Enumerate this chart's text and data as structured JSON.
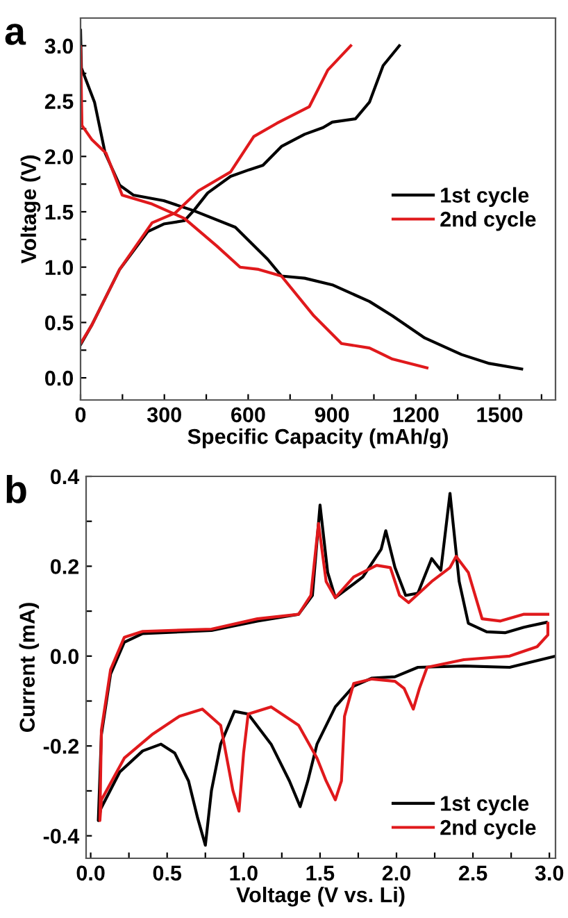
{
  "chart_data": [
    {
      "type": "line",
      "xlabel": "Specific Capacity (mAh/g)",
      "ylabel": "Voltage (V)",
      "annotations": [
        "a"
      ],
      "legend": "right",
      "grid": false,
      "line_style": "solid",
      "xlim": [
        0,
        1700
      ],
      "ylim": [
        -0.2,
        3.25
      ],
      "xticks": [
        0,
        {
          "value": 150,
          "label": null
        },
        300,
        {
          "value": 450,
          "label": null
        },
        600,
        {
          "value": 750,
          "label": null
        },
        900,
        {
          "value": 1050,
          "label": null
        },
        1200,
        {
          "value": 1350,
          "label": null
        },
        1500,
        {
          "value": 1650,
          "label": null
        }
      ],
      "yticks": [
        {
          "value": 0,
          "label": "0.0"
        },
        {
          "value": 0.25,
          "label": null
        },
        0.5,
        {
          "value": 0.75,
          "label": null
        },
        {
          "value": 1,
          "label": "1.0"
        },
        {
          "value": 1.25,
          "label": null
        },
        1.5,
        {
          "value": 1.75,
          "label": null
        },
        {
          "value": 2,
          "label": "2.0"
        },
        {
          "value": 2.25,
          "label": null
        },
        2.5,
        {
          "value": 2.75,
          "label": null
        },
        {
          "value": 3,
          "label": "3.0"
        }
      ],
      "series": [
        {
          "name": "1st cycle",
          "color": "#000000",
          "x": [
            0,
            3,
            50,
            88,
            140,
            190,
            298,
            405,
            554,
            670,
            719,
            802,
            901,
            1034,
            1116,
            1232,
            1364,
            1463,
            1579
          ],
          "values": [
            3.14,
            2.8,
            2.49,
            2.03,
            1.74,
            1.65,
            1.6,
            1.51,
            1.36,
            1.07,
            0.92,
            0.9,
            0.84,
            0.69,
            0.56,
            0.36,
            0.21,
            0.13,
            0.08
          ]
        },
        {
          "color": "#000000",
          "x": [
            0,
            41,
            140,
            240,
            298,
            372,
            405,
            455,
            537,
            604,
            653,
            719,
            802,
            868,
            901,
            984,
            1034,
            1083,
            1141
          ],
          "values": [
            0.3,
            0.48,
            0.98,
            1.32,
            1.39,
            1.42,
            1.51,
            1.67,
            1.82,
            1.88,
            1.92,
            2.09,
            2.2,
            2.26,
            2.31,
            2.34,
            2.49,
            2.82,
            3.0
          ]
        },
        {
          "name": "2nd cycle",
          "color": "#e0191c",
          "x": [
            0,
            5,
            41,
            91,
            149,
            256,
            372,
            488,
            571,
            637,
            719,
            835,
            934,
            1034,
            1116,
            1240
          ],
          "values": [
            2.99,
            2.28,
            2.15,
            2.03,
            1.65,
            1.57,
            1.44,
            1.19,
            1.0,
            0.98,
            0.92,
            0.56,
            0.31,
            0.27,
            0.17,
            0.09
          ]
        },
        {
          "color": "#e0191c",
          "x": [
            0,
            41,
            140,
            256,
            339,
            422,
            537,
            620,
            703,
            819,
            885,
            967
          ],
          "values": [
            0.31,
            0.48,
            0.98,
            1.4,
            1.49,
            1.69,
            1.86,
            2.18,
            2.3,
            2.45,
            2.78,
            3.0
          ]
        }
      ]
    },
    {
      "type": "line",
      "xlabel": "Voltage (V vs. Li)",
      "ylabel": "Current (mA)",
      "annotations": [
        "b"
      ],
      "legend": "bottom right",
      "grid": false,
      "line_style": "solid",
      "xlim": [
        -0.03,
        3.04
      ],
      "ylim": [
        -0.45,
        0.4
      ],
      "xticks": [
        {
          "value": 0,
          "label": "0.0"
        },
        {
          "value": 0.25,
          "label": null
        },
        0.5,
        {
          "value": 0.75,
          "label": null
        },
        {
          "value": 1,
          "label": "1.0"
        },
        {
          "value": 1.25,
          "label": null
        },
        1.5,
        {
          "value": 1.75,
          "label": null
        },
        {
          "value": 2,
          "label": "2.0"
        },
        {
          "value": 2.25,
          "label": null
        },
        2.5,
        {
          "value": 2.75,
          "label": null
        },
        {
          "value": 3,
          "label": "3.0"
        }
      ],
      "yticks": [
        {
          "value": -0.4,
          "label": "-0.4"
        },
        {
          "value": -0.3,
          "label": null
        },
        {
          "value": -0.2,
          "label": "-0.2"
        },
        {
          "value": -0.1,
          "label": null
        },
        {
          "value": 0,
          "label": "0.0"
        },
        {
          "value": 0.1,
          "label": null
        },
        0.2,
        {
          "value": 0.3,
          "label": null
        },
        0.4
      ],
      "series": [
        {
          "name": "1st cycle",
          "color": "#000000",
          "x": [
            3.04,
            2.74,
            2.44,
            2.14,
            1.99,
            1.84,
            1.72,
            1.6,
            1.48,
            1.42,
            1.37,
            1.3,
            1.18,
            1.03,
            0.94,
            0.85,
            0.79,
            0.75,
            0.7,
            0.64,
            0.55,
            0.46,
            0.34,
            0.19,
            0.066,
            0.05,
            0.07,
            0.13,
            0.22,
            0.34,
            0.79,
            1.09,
            1.36,
            1.45,
            1.5,
            1.55,
            1.6,
            1.78,
            1.9,
            1.93,
            1.99,
            2.06,
            2.14,
            2.23,
            2.29,
            2.35,
            2.41,
            2.47,
            2.59,
            2.71,
            2.83,
            2.98
          ],
          "values": [
            0.0,
            -0.025,
            -0.022,
            -0.025,
            -0.046,
            -0.049,
            -0.067,
            -0.113,
            -0.196,
            -0.278,
            -0.335,
            -0.278,
            -0.196,
            -0.129,
            -0.123,
            -0.196,
            -0.299,
            -0.421,
            -0.361,
            -0.278,
            -0.216,
            -0.196,
            -0.211,
            -0.258,
            -0.34,
            -0.366,
            -0.175,
            -0.04,
            0.031,
            0.05,
            0.057,
            0.078,
            0.093,
            0.135,
            0.336,
            0.186,
            0.13,
            0.176,
            0.238,
            0.279,
            0.197,
            0.135,
            0.14,
            0.217,
            0.191,
            0.362,
            0.166,
            0.073,
            0.054,
            0.052,
            0.064,
            0.075
          ]
        },
        {
          "name": "2nd cycle",
          "color": "#e0191c",
          "x": [
            2.99,
            2.99,
            2.92,
            2.74,
            2.44,
            2.2,
            2.15,
            2.11,
            2.05,
            1.99,
            1.84,
            1.72,
            1.66,
            1.64,
            1.6,
            1.54,
            1.48,
            1.36,
            1.18,
            1.03,
            1.0,
            0.97,
            0.93,
            0.85,
            0.73,
            0.58,
            0.4,
            0.22,
            0.07,
            0.06,
            0.07,
            0.13,
            0.22,
            0.34,
            0.79,
            1.09,
            1.36,
            1.44,
            1.49,
            1.54,
            1.6,
            1.72,
            1.87,
            1.96,
            2.02,
            2.08,
            2.23,
            2.35,
            2.39,
            2.47,
            2.56,
            2.68,
            2.83,
            2.99
          ],
          "values": [
            0.073,
            0.047,
            0.021,
            0.0,
            -0.008,
            -0.025,
            -0.072,
            -0.118,
            -0.072,
            -0.056,
            -0.051,
            -0.061,
            -0.134,
            -0.278,
            -0.32,
            -0.278,
            -0.227,
            -0.154,
            -0.113,
            -0.129,
            -0.216,
            -0.345,
            -0.299,
            -0.154,
            -0.118,
            -0.134,
            -0.175,
            -0.227,
            -0.32,
            -0.366,
            -0.165,
            -0.03,
            0.042,
            0.055,
            0.06,
            0.083,
            0.093,
            0.135,
            0.295,
            0.166,
            0.13,
            0.176,
            0.202,
            0.197,
            0.135,
            0.119,
            0.166,
            0.197,
            0.222,
            0.186,
            0.083,
            0.078,
            0.093,
            0.093
          ]
        }
      ]
    }
  ]
}
